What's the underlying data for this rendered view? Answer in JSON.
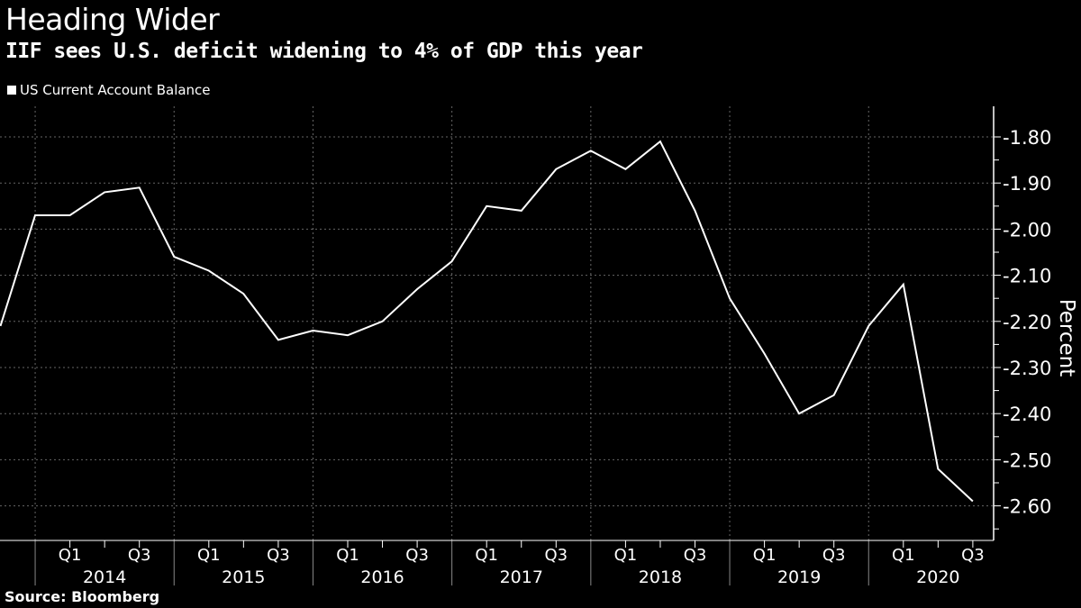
{
  "header": {
    "title": "Heading Wider",
    "subtitle": "IIF sees U.S. deficit widening to 4% of GDP this year"
  },
  "footer": {
    "source": "Source: Bloomberg"
  },
  "chart_data": {
    "type": "line",
    "title": "Heading Wider",
    "subtitle": "IIF sees U.S. deficit widening to 4% of GDP this year",
    "xlabel": "",
    "ylabel": "Percent",
    "ylim": [
      -2.67,
      -1.75
    ],
    "yticks": [
      -1.8,
      -1.9,
      -2.0,
      -2.1,
      -2.2,
      -2.3,
      -2.4,
      -2.5,
      -2.6
    ],
    "ytick_labels": [
      "-1.80",
      "-1.90",
      "-2.00",
      "-2.10",
      "-2.20",
      "-2.30",
      "-2.40",
      "-2.50",
      "-2.60"
    ],
    "grid": true,
    "legend_position": "top-left",
    "years": [
      "2014",
      "2015",
      "2016",
      "2017",
      "2018",
      "2019",
      "2020"
    ],
    "quarter_labels": [
      "Q1",
      "Q3"
    ],
    "x": [
      "2013Q3",
      "2013Q4",
      "2014Q1",
      "2014Q2",
      "2014Q3",
      "2014Q4",
      "2015Q1",
      "2015Q2",
      "2015Q3",
      "2015Q4",
      "2016Q1",
      "2016Q2",
      "2016Q3",
      "2016Q4",
      "2017Q1",
      "2017Q2",
      "2017Q3",
      "2017Q4",
      "2018Q1",
      "2018Q2",
      "2018Q3",
      "2018Q4",
      "2019Q1",
      "2019Q2",
      "2019Q3",
      "2019Q4",
      "2020Q1",
      "2020Q2",
      "2020Q3"
    ],
    "series": [
      {
        "name": "US Current Account Balance",
        "color": "#ffffff",
        "values": [
          -2.21,
          -1.97,
          -1.97,
          -1.92,
          -1.91,
          -2.06,
          -2.09,
          -2.14,
          -2.24,
          -2.22,
          -2.23,
          -2.2,
          -2.13,
          -2.07,
          -1.95,
          -1.96,
          -1.87,
          -1.83,
          -1.87,
          -1.81,
          -1.96,
          -2.15,
          -2.27,
          -2.4,
          -2.36,
          -2.21,
          -2.12,
          -2.52,
          -2.59
        ]
      }
    ]
  }
}
